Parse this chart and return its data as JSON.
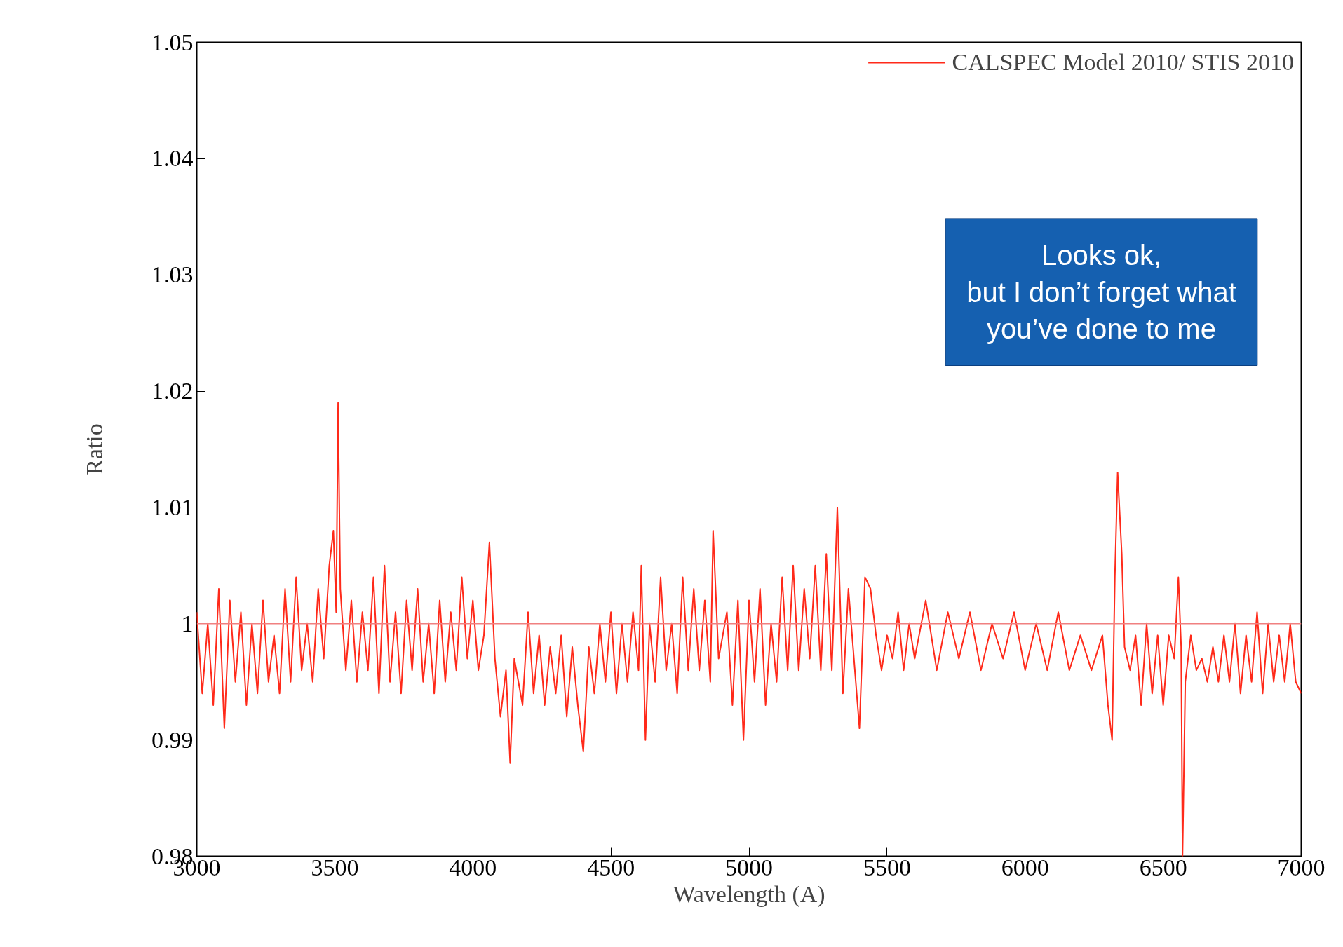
{
  "chart_data": {
    "type": "line",
    "xlabel": "Wavelength (A)",
    "ylabel": "Ratio",
    "xlim": [
      3000,
      7000
    ],
    "ylim": [
      0.98,
      1.05
    ],
    "xticks": [
      3000,
      3500,
      4000,
      4500,
      5000,
      5500,
      6000,
      6500,
      7000
    ],
    "yticks": [
      {
        "value": 0.98,
        "label": "0.98"
      },
      {
        "value": 0.99,
        "label": "0.99"
      },
      {
        "value": 1.0,
        "label": "1"
      },
      {
        "value": 1.01,
        "label": "1.01"
      },
      {
        "value": 1.02,
        "label": "1.02"
      },
      {
        "value": 1.03,
        "label": "1.03"
      },
      {
        "value": 1.04,
        "label": "1.04"
      },
      {
        "value": 1.05,
        "label": "1.05"
      }
    ],
    "grid": false,
    "legend": "top right",
    "marker": "none",
    "line_style": "solid",
    "ref_lines": [
      {
        "axis": "y",
        "value": 1.0,
        "color": "#f08080"
      }
    ],
    "annotations": [
      "Looks ok,\nbut I don’t forget what\nyou’ve done to me"
    ],
    "series": [
      {
        "name": "CALSPEC Model 2010/ STIS 2010",
        "color": "#ff2a1a",
        "x": [
          3000,
          3020,
          3040,
          3060,
          3080,
          3100,
          3120,
          3140,
          3160,
          3180,
          3200,
          3220,
          3240,
          3260,
          3280,
          3300,
          3320,
          3340,
          3360,
          3380,
          3400,
          3420,
          3440,
          3460,
          3480,
          3495,
          3505,
          3512,
          3520,
          3540,
          3560,
          3580,
          3600,
          3620,
          3640,
          3660,
          3680,
          3700,
          3720,
          3740,
          3760,
          3780,
          3800,
          3820,
          3840,
          3860,
          3880,
          3900,
          3920,
          3940,
          3960,
          3980,
          4000,
          4020,
          4040,
          4060,
          4080,
          4100,
          4120,
          4135,
          4150,
          4180,
          4200,
          4220,
          4240,
          4260,
          4280,
          4300,
          4320,
          4340,
          4360,
          4380,
          4400,
          4420,
          4440,
          4460,
          4480,
          4500,
          4520,
          4540,
          4560,
          4580,
          4600,
          4610,
          4625,
          4640,
          4660,
          4680,
          4700,
          4720,
          4740,
          4760,
          4780,
          4800,
          4820,
          4840,
          4860,
          4870,
          4890,
          4920,
          4940,
          4960,
          4980,
          5000,
          5020,
          5040,
          5060,
          5080,
          5100,
          5120,
          5140,
          5160,
          5180,
          5200,
          5220,
          5240,
          5260,
          5280,
          5300,
          5320,
          5340,
          5360,
          5380,
          5400,
          5420,
          5440,
          5460,
          5480,
          5500,
          5520,
          5540,
          5560,
          5580,
          5600,
          5640,
          5680,
          5720,
          5760,
          5800,
          5840,
          5880,
          5920,
          5960,
          6000,
          6040,
          6080,
          6120,
          6160,
          6200,
          6240,
          6280,
          6300,
          6315,
          6325,
          6335,
          6350,
          6360,
          6380,
          6400,
          6420,
          6440,
          6460,
          6480,
          6500,
          6520,
          6540,
          6555,
          6565,
          6570,
          6580,
          6600,
          6620,
          6640,
          6660,
          6680,
          6700,
          6720,
          6740,
          6760,
          6780,
          6800,
          6820,
          6840,
          6860,
          6880,
          6900,
          6920,
          6940,
          6960,
          6980,
          7000
        ],
        "values": [
          1.001,
          0.994,
          1.0,
          0.993,
          1.003,
          0.991,
          1.002,
          0.995,
          1.001,
          0.993,
          1.0,
          0.994,
          1.002,
          0.995,
          0.999,
          0.994,
          1.003,
          0.995,
          1.004,
          0.996,
          1.0,
          0.995,
          1.003,
          0.997,
          1.005,
          1.008,
          1.001,
          1.019,
          1.003,
          0.996,
          1.002,
          0.995,
          1.001,
          0.996,
          1.004,
          0.994,
          1.005,
          0.995,
          1.001,
          0.994,
          1.002,
          0.996,
          1.003,
          0.995,
          1.0,
          0.994,
          1.002,
          0.995,
          1.001,
          0.996,
          1.004,
          0.997,
          1.002,
          0.996,
          0.999,
          1.007,
          0.997,
          0.992,
          0.996,
          0.988,
          0.997,
          0.993,
          1.001,
          0.994,
          0.999,
          0.993,
          0.998,
          0.994,
          0.999,
          0.992,
          0.998,
          0.993,
          0.989,
          0.998,
          0.994,
          1.0,
          0.995,
          1.001,
          0.994,
          1.0,
          0.995,
          1.001,
          0.996,
          1.005,
          0.99,
          1.0,
          0.995,
          1.004,
          0.996,
          1.0,
          0.994,
          1.004,
          0.996,
          1.003,
          0.996,
          1.002,
          0.995,
          1.008,
          0.997,
          1.001,
          0.993,
          1.002,
          0.99,
          1.002,
          0.995,
          1.003,
          0.993,
          1.0,
          0.995,
          1.004,
          0.996,
          1.005,
          0.996,
          1.003,
          0.997,
          1.005,
          0.996,
          1.006,
          0.996,
          1.01,
          0.994,
          1.003,
          0.997,
          0.991,
          1.004,
          1.003,
          0.999,
          0.996,
          0.999,
          0.997,
          1.001,
          0.996,
          1.0,
          0.997,
          1.002,
          0.996,
          1.001,
          0.997,
          1.001,
          0.996,
          1.0,
          0.997,
          1.001,
          0.996,
          1.0,
          0.996,
          1.001,
          0.996,
          0.999,
          0.996,
          0.999,
          0.993,
          0.99,
          1.004,
          1.013,
          1.006,
          0.998,
          0.996,
          0.999,
          0.993,
          1.0,
          0.994,
          0.999,
          0.993,
          0.999,
          0.997,
          1.004,
          0.998,
          0.98,
          0.995,
          0.999,
          0.996,
          0.997,
          0.995,
          0.998,
          0.995,
          0.999,
          0.995,
          1.0,
          0.994,
          0.999,
          0.995,
          1.001,
          0.994,
          1.0,
          0.995,
          0.999,
          0.995,
          1.0,
          0.995,
          0.994
        ]
      }
    ]
  }
}
